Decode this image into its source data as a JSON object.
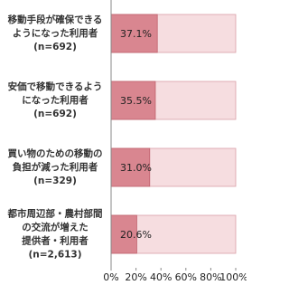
{
  "chart_data": {
    "type": "bar",
    "orientation": "horizontal",
    "categories": [
      [
        "移動手段が確保できる",
        "ようになった利用者",
        "(n=692)"
      ],
      [
        "安価で移動できるよう",
        "になった利用者",
        "(n=692)"
      ],
      [
        "買い物のための移動の",
        "負担が減った利用者",
        "(n=329)"
      ],
      [
        "都市周辺部・農村部間",
        "の交流が増えた",
        "提供者・利用者",
        "(n=2,613)"
      ]
    ],
    "values": [
      37.1,
      35.5,
      31.0,
      20.6
    ],
    "value_labels": [
      "37.1%",
      "35.5%",
      "31.0%",
      "20.6%"
    ],
    "color": "#d98690",
    "background_color": "#f6dde0",
    "xlim": [
      0,
      100
    ],
    "xticks": [
      {
        "value": 0,
        "label": "0%"
      },
      {
        "value": 20,
        "label": "20%"
      },
      {
        "value": 40,
        "label": "40%"
      },
      {
        "value": 60,
        "label": "60%"
      },
      {
        "value": 80,
        "label": "80%"
      },
      {
        "value": 100,
        "label": "100%"
      }
    ]
  }
}
